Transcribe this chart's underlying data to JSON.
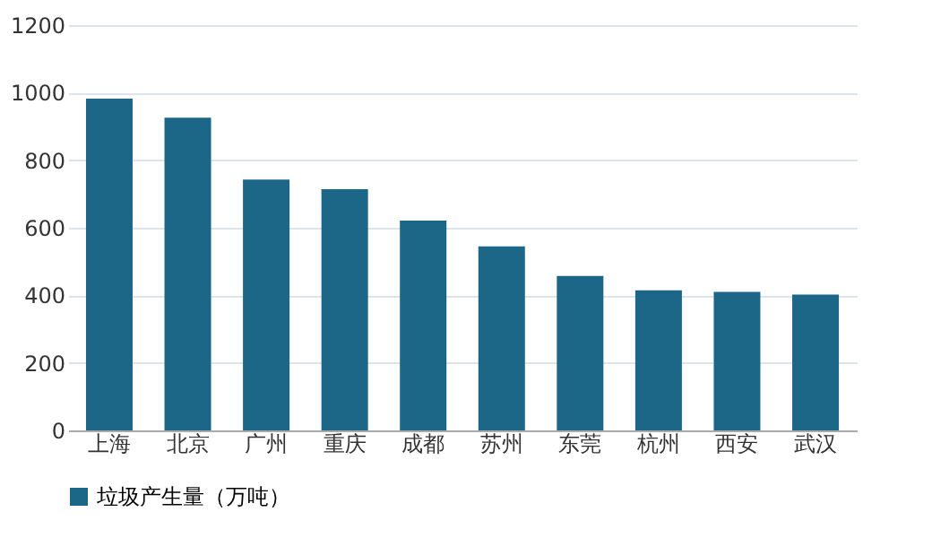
{
  "chart_data": {
    "type": "bar",
    "categories": [
      "上海",
      "北京",
      "广州",
      "重庆",
      "成都",
      "苏州",
      "东莞",
      "杭州",
      "西安",
      "武汉"
    ],
    "series": [
      {
        "name": "垃圾产生量（万吨）",
        "color": "#1c6688",
        "values": [
          982,
          926,
          743,
          714,
          621,
          545,
          457,
          415,
          410,
          402
        ]
      }
    ],
    "ylim": [
      0,
      1200
    ],
    "yticks": [
      0,
      200,
      400,
      600,
      800,
      1000,
      1200
    ],
    "grid": "y",
    "legend": "bottom"
  }
}
